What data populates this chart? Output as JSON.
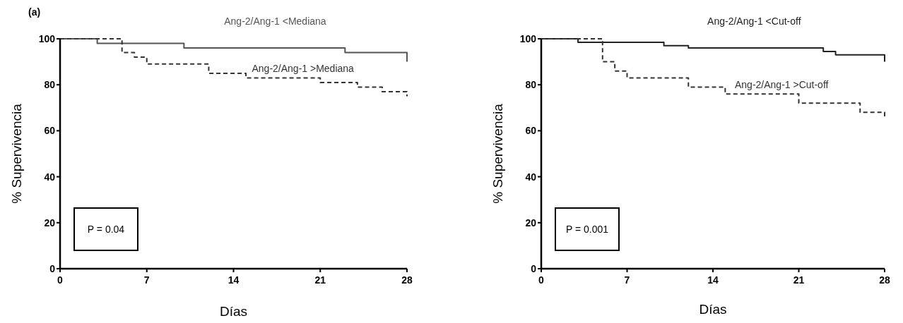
{
  "chart_data": [
    {
      "type": "step",
      "title": "(a)",
      "xlabel": "Días",
      "ylabel": "% Supervivencia",
      "xlim": [
        0,
        28
      ],
      "ylim": [
        0,
        100
      ],
      "xticks": [
        0,
        7,
        14,
        21,
        28
      ],
      "yticks": [
        0,
        20,
        40,
        60,
        80,
        100
      ],
      "grid": false,
      "legend": false,
      "annotations": [
        "P = 0.04"
      ],
      "series": [
        {
          "name": "Ang-2/Ang-1 <Mediana",
          "color": "#555555",
          "line_style": "solid",
          "x": [
            0,
            3,
            10,
            23,
            28,
            28
          ],
          "values": [
            100,
            98,
            96,
            94,
            94,
            90
          ]
        },
        {
          "name": "Ang-2/Ang-1 >Mediana",
          "color": "#333333",
          "line_style": "dashed",
          "x": [
            0,
            5,
            6,
            7,
            12,
            15,
            21,
            24,
            26,
            28,
            28
          ],
          "values": [
            100,
            94,
            92,
            89,
            85,
            83,
            81,
            79,
            77,
            77,
            75
          ]
        }
      ]
    },
    {
      "type": "step",
      "xlabel": "Días",
      "ylabel": "% Supervivencia",
      "xlim": [
        0,
        28
      ],
      "ylim": [
        0,
        100
      ],
      "xticks": [
        0,
        7,
        14,
        21,
        28
      ],
      "yticks": [
        0,
        20,
        40,
        60,
        80,
        100
      ],
      "grid": false,
      "legend": false,
      "annotations": [
        "P = 0.001"
      ],
      "series": [
        {
          "name": "Ang-2/Ang-1 <Cut-off",
          "color": "#222222",
          "line_style": "solid",
          "x": [
            0,
            3,
            10,
            12,
            23,
            24,
            28,
            28
          ],
          "values": [
            100,
            98.5,
            97,
            96,
            94.5,
            93,
            93,
            90
          ]
        },
        {
          "name": "Ang-2/Ang-1 >Cut-off",
          "color": "#333333",
          "line_style": "dashed",
          "x": [
            0,
            5,
            6,
            7,
            12,
            15,
            21,
            26,
            28,
            28
          ],
          "values": [
            100,
            90,
            86,
            83,
            79,
            76,
            72,
            68,
            68,
            65
          ]
        }
      ]
    }
  ]
}
